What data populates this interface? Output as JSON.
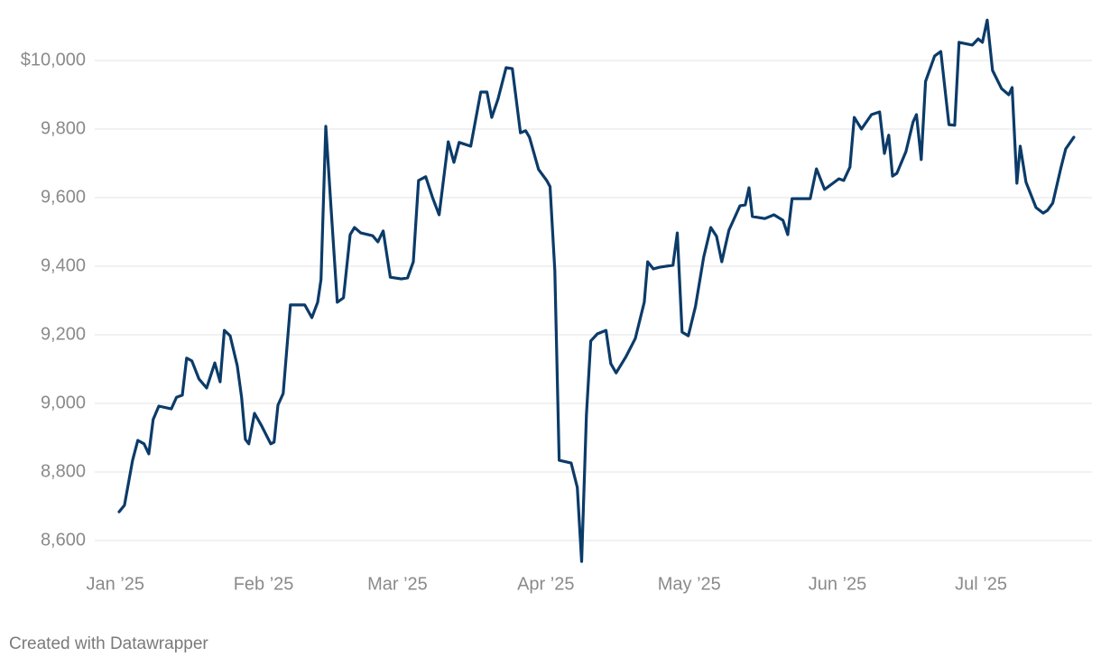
{
  "chart_data": {
    "type": "line",
    "source": "Created with Datawrapper",
    "color": "#0b3b69",
    "grid": true,
    "x": [
      0.8,
      1.9,
      3.6,
      4.7,
      6.0,
      7.0,
      7.9,
      9.1,
      11.7,
      12.8,
      14.0,
      14.9,
      16.0,
      17.5,
      19.1,
      20.8,
      21.9,
      22.8,
      24.0,
      25.5,
      26.4,
      27.2,
      27.9,
      29.1,
      30.6,
      32.5,
      33.2,
      34.0,
      35.1,
      36.6,
      39.6,
      41.1,
      42.3,
      43.0,
      44.0,
      45.1,
      46.4,
      47.7,
      49.1,
      50.0,
      51.3,
      53.8,
      54.9,
      56.0,
      57.5,
      59.8,
      61.1,
      62.3,
      63.4,
      64.9,
      66.4,
      67.7,
      69.6,
      70.8,
      71.9,
      74.3,
      76.4,
      77.7,
      78.7,
      80.0,
      81.7,
      83.0,
      84.7,
      85.8,
      86.6,
      88.5,
      90.2,
      90.9,
      91.9,
      92.8,
      95.3,
      96.6,
      97.5,
      98.5,
      99.4,
      100.8,
      102.6,
      103.6,
      104.7,
      106.8,
      108.7,
      110.6,
      111.3,
      112.5,
      113.8,
      116.6,
      117.5,
      118.5,
      119.8,
      121.3,
      123.0,
      124.5,
      125.7,
      126.8,
      128.3,
      130.6,
      131.7,
      132.5,
      133.2,
      135.8,
      137.7,
      139.6,
      140.6,
      141.5,
      145.3,
      146.6,
      148.3,
      151.3,
      152.3,
      153.6,
      154.5,
      156.0,
      158.1,
      159.8,
      160.8,
      161.7,
      162.5,
      163.4,
      165.3,
      166.8,
      167.5,
      168.5,
      169.4,
      171.3,
      172.6,
      174.3,
      175.5,
      176.4,
      179.2,
      180.4,
      181.3,
      182.3,
      183.4,
      185.3,
      186.8,
      187.5,
      188.5,
      189.2,
      190.4,
      192.5,
      194.0,
      194.9,
      196.0,
      197.7,
      198.7,
      200.4
    ],
    "values": [
      8684,
      8703,
      8834,
      8892,
      8882,
      8853,
      8953,
      8992,
      8984,
      9018,
      9024,
      9132,
      9124,
      9071,
      9045,
      9118,
      9063,
      9213,
      9197,
      9110,
      9018,
      8895,
      8882,
      8971,
      8934,
      8882,
      8887,
      8995,
      9029,
      9287,
      9287,
      9250,
      9295,
      9361,
      9808,
      9571,
      9295,
      9308,
      9492,
      9513,
      9497,
      9489,
      9471,
      9503,
      9368,
      9363,
      9366,
      9413,
      9650,
      9661,
      9597,
      9550,
      9763,
      9703,
      9761,
      9750,
      9908,
      9908,
      9834,
      9887,
      9979,
      9976,
      9789,
      9795,
      9776,
      9682,
      9650,
      9632,
      9387,
      8834,
      8826,
      8755,
      8539,
      8966,
      9182,
      9203,
      9213,
      9116,
      9089,
      9137,
      9189,
      9295,
      9413,
      9392,
      9397,
      9403,
      9497,
      9208,
      9197,
      9282,
      9426,
      9513,
      9487,
      9413,
      9505,
      9576,
      9579,
      9629,
      9545,
      9539,
      9550,
      9534,
      9492,
      9597,
      9597,
      9684,
      9624,
      9655,
      9650,
      9689,
      9834,
      9800,
      9842,
      9850,
      9729,
      9782,
      9663,
      9671,
      9734,
      9821,
      9842,
      9711,
      9939,
      10013,
      10026,
      9813,
      9811,
      10053,
      10045,
      10063,
      10053,
      10118,
      9971,
      9918,
      9900,
      9921,
      9642,
      9750,
      9645,
      9571,
      9555,
      9563,
      9584,
      9687,
      9742,
      9776
    ],
    "xlim": [
      -4.3,
      204.2
    ],
    "xticks": [
      {
        "value": 0,
        "label": "Jan ’25"
      },
      {
        "value": 31,
        "label": "Feb ’25"
      },
      {
        "value": 59,
        "label": "Mar ’25"
      },
      {
        "value": 90,
        "label": "Apr ’25"
      },
      {
        "value": 120,
        "label": "May ’25"
      },
      {
        "value": 151,
        "label": "Jun ’25"
      },
      {
        "value": 181,
        "label": "Jul ’25"
      }
    ],
    "ylim": [
      8540,
      10140
    ],
    "yticks": [
      {
        "value": 8600,
        "label": "8,600"
      },
      {
        "value": 8800,
        "label": "8,800"
      },
      {
        "value": 9000,
        "label": "9,000"
      },
      {
        "value": 9200,
        "label": "9,200"
      },
      {
        "value": 9400,
        "label": "9,400"
      },
      {
        "value": 9600,
        "label": "9,600"
      },
      {
        "value": 9800,
        "label": "9,800"
      },
      {
        "value": 10000,
        "label": "$10,000"
      }
    ]
  }
}
